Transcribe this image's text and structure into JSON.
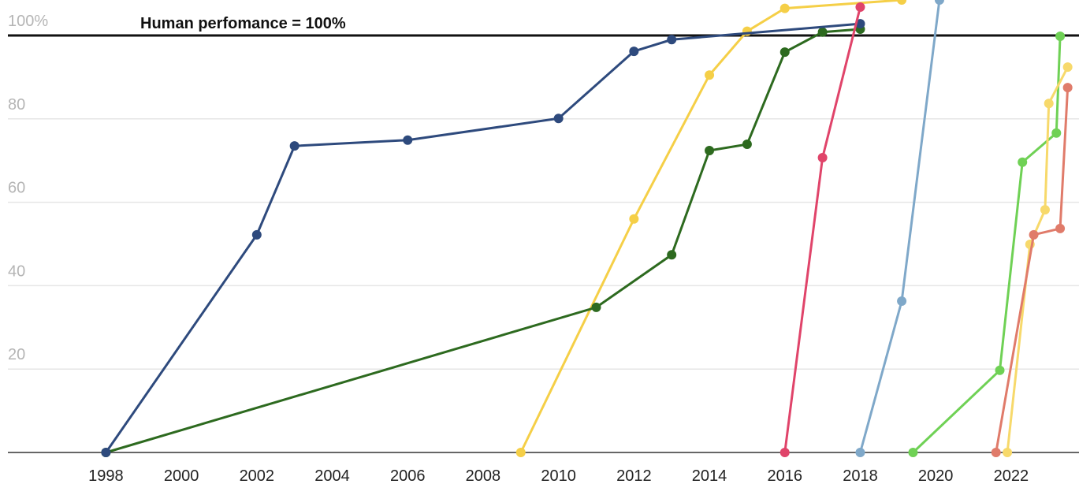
{
  "chart_data": {
    "type": "line",
    "reference_line": {
      "value": 100,
      "label": "Human perfomance = 100%"
    },
    "xlim": [
      1995.4,
      2023.8
    ],
    "ylim": [
      0,
      108.5
    ],
    "xticks": [
      1998,
      2000,
      2002,
      2004,
      2006,
      2008,
      2010,
      2012,
      2014,
      2016,
      2018,
      2020,
      2022
    ],
    "yticks": [
      20,
      40,
      60,
      80,
      {
        "value": 100,
        "label": "100%"
      }
    ],
    "grid": true,
    "series": [
      {
        "color": "#f5cf47",
        "x": [
          2009,
          2012,
          2014,
          2015,
          2016,
          2019.1
        ],
        "values": [
          0,
          56,
          90.5,
          101,
          106.5,
          108.5
        ]
      },
      {
        "color": "#2d6a1f",
        "x": [
          1998,
          2011,
          2013,
          2014,
          2015,
          2016,
          2017,
          2018
        ],
        "values": [
          0,
          34.8,
          47.4,
          72.4,
          73.9,
          96,
          100.8,
          101.5
        ]
      },
      {
        "color": "#2e4a7d",
        "x": [
          1998,
          2002,
          2003,
          2006,
          2010,
          2012,
          2013,
          2018
        ],
        "values": [
          0,
          52.2,
          73.5,
          74.9,
          80.1,
          96.2,
          99,
          102.8
        ]
      },
      {
        "color": "#e0446a",
        "x": [
          2016,
          2017,
          2018
        ],
        "values": [
          0,
          70.7,
          106.8
        ]
      },
      {
        "color": "#7fa8c9",
        "x": [
          2018,
          2019.1,
          2020.1
        ],
        "values": [
          0,
          36.3,
          108.5
        ]
      },
      {
        "color": "#6fd155",
        "x": [
          2019.4,
          2021.7,
          2022.3,
          2023.2,
          2023.3
        ],
        "values": [
          0,
          19.7,
          69.6,
          76.6,
          99.8
        ]
      },
      {
        "color": "#f7d96b",
        "x": [
          2021.9,
          2022.5,
          2022.9,
          2023,
          2023.5
        ],
        "values": [
          0,
          49.9,
          58.2,
          83.7,
          92.4
        ]
      },
      {
        "color": "#e07b6a",
        "x": [
          2021.6,
          2022.6,
          2023.3,
          2023.5
        ],
        "values": [
          0,
          52.2,
          53.7,
          87.5
        ]
      }
    ]
  }
}
